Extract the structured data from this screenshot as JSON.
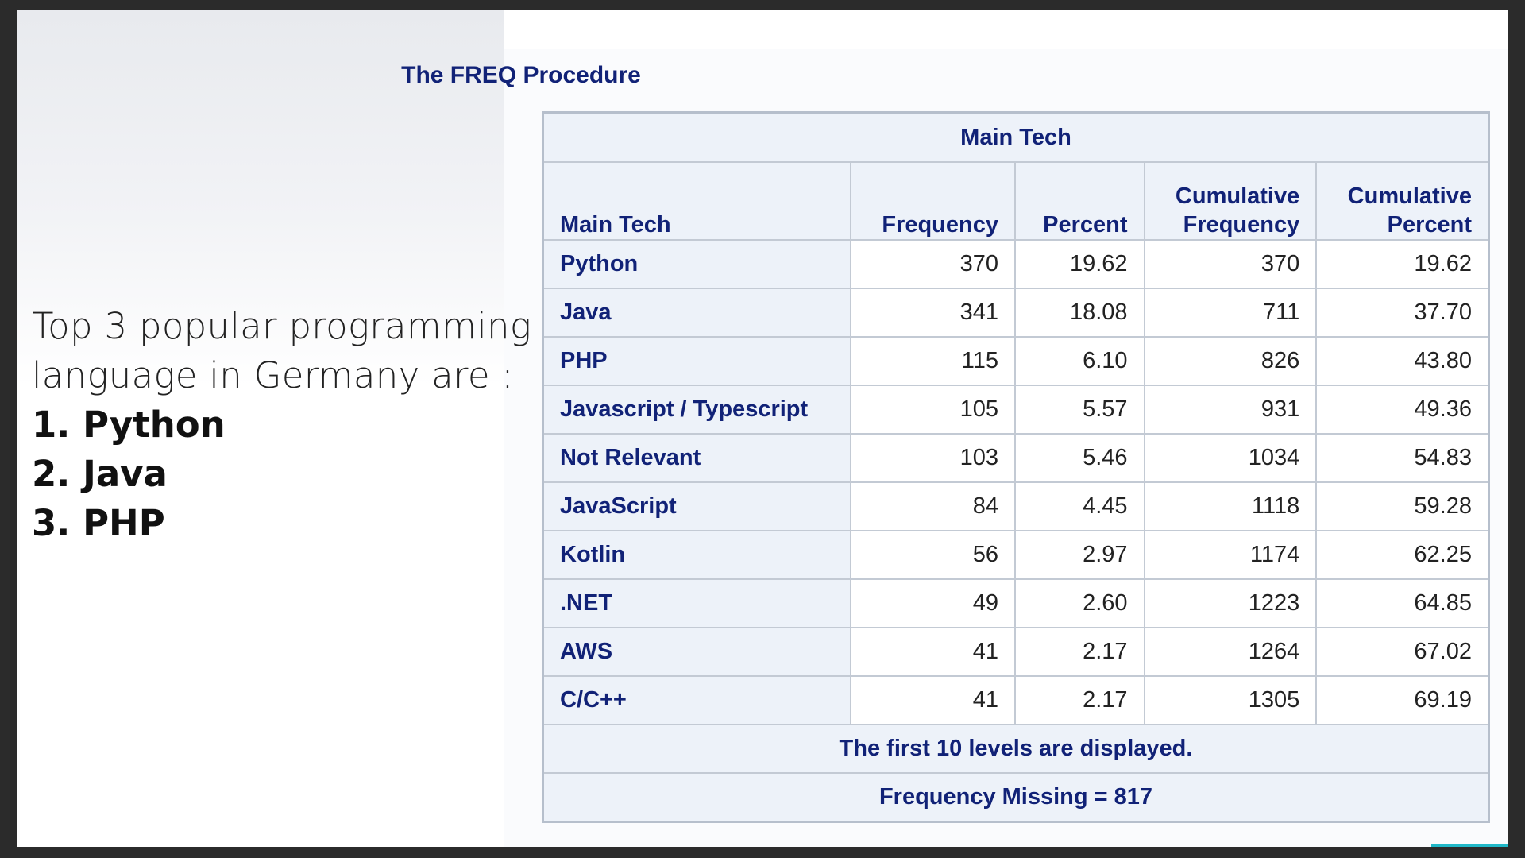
{
  "caption": {
    "intro": "Top 3 popular programming language in Germany are :",
    "ranks": [
      "1. Python",
      "2. Java",
      "3. PHP"
    ]
  },
  "procedure_title": "The FREQ Procedure",
  "table": {
    "title": "Main Tech",
    "columns": [
      "Main Tech",
      "Frequency",
      "Percent",
      "Cumulative Frequency",
      "Cumulative Percent"
    ],
    "column_lines": {
      "cum_freq": [
        "Cumulative",
        "Frequency"
      ],
      "cum_pct": [
        "Cumulative",
        "Percent"
      ]
    },
    "rows": [
      [
        "Python",
        "370",
        "19.62",
        "370",
        "19.62"
      ],
      [
        "Java",
        "341",
        "18.08",
        "711",
        "37.70"
      ],
      [
        "PHP",
        "115",
        "6.10",
        "826",
        "43.80"
      ],
      [
        "Javascript / Typescript",
        "105",
        "5.57",
        "931",
        "49.36"
      ],
      [
        "Not Relevant",
        "103",
        "5.46",
        "1034",
        "54.83"
      ],
      [
        "JavaScript",
        "84",
        "4.45",
        "1118",
        "59.28"
      ],
      [
        "Kotlin",
        "56",
        "2.97",
        "1174",
        "62.25"
      ],
      [
        ".NET",
        "49",
        "2.60",
        "1223",
        "64.85"
      ],
      [
        "AWS",
        "41",
        "2.17",
        "1264",
        "67.02"
      ],
      [
        "C/C++",
        "41",
        "2.17",
        "1305",
        "69.19"
      ]
    ],
    "footnotes": [
      "The first 10 levels are displayed.",
      "Frequency Missing = 817"
    ]
  },
  "colors": {
    "header_text": "#112277",
    "header_bg": "#edf2f9",
    "border": "#c3cad4",
    "accent": "#20b8c8"
  }
}
